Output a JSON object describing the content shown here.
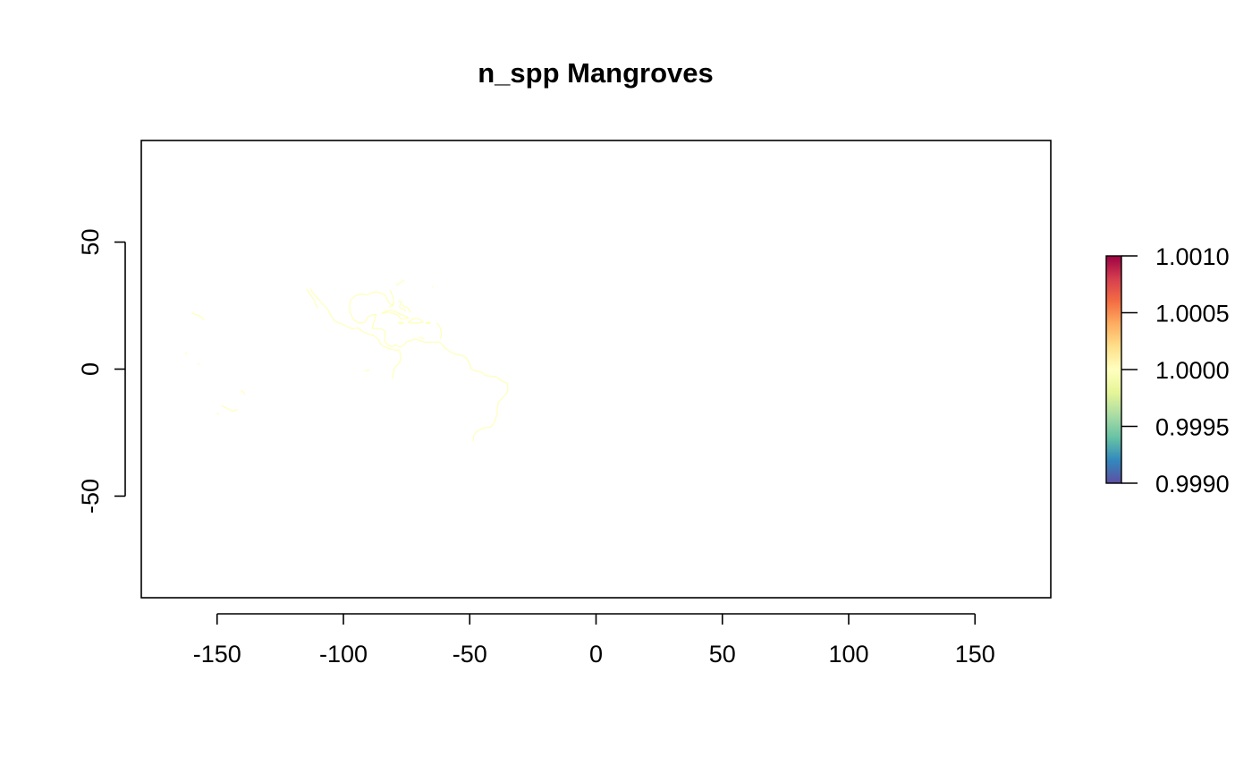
{
  "chart_data": {
    "type": "heatmap",
    "title": "n_spp Mangroves",
    "xlabel": "",
    "ylabel": "",
    "xlim": [
      -180,
      180
    ],
    "ylim": [
      -90,
      90
    ],
    "x_ticks": [
      -150,
      -100,
      -50,
      0,
      50,
      100,
      150
    ],
    "x_tick_labels": [
      "-150",
      "-100",
      "-50",
      "0",
      "50",
      "100",
      "150"
    ],
    "y_ticks": [
      -50,
      0,
      50
    ],
    "y_tick_labels": [
      "-50",
      "0",
      "50"
    ],
    "grid": false,
    "legend": {
      "type": "colorbar",
      "placement": "right",
      "range": [
        0.999,
        1.001
      ],
      "ticks": [
        0.999,
        0.9995,
        1.0,
        1.0005,
        1.001
      ],
      "tick_labels": [
        "0.9990",
        "0.9995",
        "1.0000",
        "1.0005",
        "1.0010"
      ],
      "palette": [
        "#5E4FA2",
        "#3288BD",
        "#66C2A5",
        "#ABDDA4",
        "#E6F598",
        "#FFFFBF",
        "#FEE08B",
        "#FDAE61",
        "#F46D43",
        "#D53E4F",
        "#9E0142"
      ]
    },
    "value_color": "#FFFFBF",
    "cell_value": 1.0,
    "coast_segments": [
      {
        "region": "gulf-of-california-west",
        "points": [
          [
            -114.5,
            31.5
          ],
          [
            -113.5,
            30
          ],
          [
            -112.5,
            28.5
          ],
          [
            -111.5,
            27
          ],
          [
            -111,
            25.5
          ],
          [
            -110.2,
            24
          ]
        ]
      },
      {
        "region": "gulf-of-california-east",
        "points": [
          [
            -113,
            31.5
          ],
          [
            -112,
            30
          ],
          [
            -110.8,
            28.5
          ],
          [
            -109.5,
            27
          ],
          [
            -108.5,
            25.8
          ],
          [
            -107.2,
            24.6
          ],
          [
            -106,
            23.2
          ],
          [
            -105.3,
            21.6
          ]
        ]
      },
      {
        "region": "pacific-mexico-central-america",
        "points": [
          [
            -105.3,
            21.6
          ],
          [
            -103.5,
            19
          ],
          [
            -100,
            17.5
          ],
          [
            -96.5,
            15.8
          ],
          [
            -94,
            16.2
          ],
          [
            -92.5,
            14.8
          ],
          [
            -90,
            13.8
          ],
          [
            -88,
            13.2
          ],
          [
            -86.5,
            12
          ],
          [
            -85.7,
            11
          ],
          [
            -85.5,
            10
          ],
          [
            -84.5,
            9.3
          ],
          [
            -83,
            8.5
          ],
          [
            -81,
            7.8
          ],
          [
            -79.5,
            7.5
          ],
          [
            -78,
            7.5
          ]
        ]
      },
      {
        "region": "gulf-of-mexico",
        "points": [
          [
            -97.5,
            22.5
          ],
          [
            -97.5,
            25
          ],
          [
            -97.2,
            27
          ],
          [
            -95.5,
            28.8
          ],
          [
            -93,
            29.6
          ],
          [
            -90.5,
            29.2
          ],
          [
            -89,
            30
          ],
          [
            -87,
            30.4
          ],
          [
            -85,
            29.8
          ],
          [
            -83.3,
            29
          ],
          [
            -82.7,
            27.5
          ],
          [
            -81.5,
            25.5
          ],
          [
            -80.2,
            25.3
          ],
          [
            -80.1,
            27
          ],
          [
            -80.6,
            29
          ],
          [
            -81.4,
            31
          ]
        ]
      },
      {
        "region": "yucatan-caribbean-coast",
        "points": [
          [
            -97.5,
            22.5
          ],
          [
            -96,
            19.5
          ],
          [
            -94,
            18.2
          ],
          [
            -91.5,
            18.5
          ],
          [
            -90.4,
            20.5
          ],
          [
            -88.5,
            21.4
          ],
          [
            -87,
            21.5
          ],
          [
            -87.5,
            19.8
          ],
          [
            -88.2,
            17.6
          ],
          [
            -88.6,
            16
          ],
          [
            -87,
            15.8
          ],
          [
            -85,
            15.9
          ],
          [
            -83.5,
            15
          ],
          [
            -83.5,
            13
          ],
          [
            -83.7,
            11
          ],
          [
            -82.5,
            9.5
          ],
          [
            -81,
            8.8
          ],
          [
            -79.5,
            9.5
          ],
          [
            -77.5,
            8.7
          ],
          [
            -76,
            9.5
          ],
          [
            -75,
            10.8
          ],
          [
            -73,
            11.3
          ],
          [
            -71.5,
            11.8
          ],
          [
            -70,
            11.4
          ],
          [
            -68,
            10.6
          ],
          [
            -66,
            10.6
          ],
          [
            -63.8,
            10.6
          ],
          [
            -62,
            10.7
          ],
          [
            -61,
            9.8
          ],
          [
            -60,
            8.5
          ],
          [
            -58,
            7
          ],
          [
            -56,
            5.9
          ],
          [
            -54,
            5.7
          ],
          [
            -52,
            4.8
          ],
          [
            -51,
            4
          ]
        ]
      },
      {
        "region": "cuba",
        "points": [
          [
            -84.9,
            21.9
          ],
          [
            -83,
            22.9
          ],
          [
            -81,
            23.1
          ],
          [
            -79,
            22.5
          ],
          [
            -77.5,
            21.6
          ],
          [
            -76,
            21
          ],
          [
            -74.2,
            20.2
          ],
          [
            -75.5,
            19.9
          ],
          [
            -77.5,
            19.9
          ],
          [
            -78.5,
            21.4
          ],
          [
            -80.5,
            21.9
          ],
          [
            -82.5,
            22.4
          ],
          [
            -84.9,
            21.9
          ]
        ]
      },
      {
        "region": "hispaniola",
        "points": [
          [
            -74.4,
            18.4
          ],
          [
            -72.5,
            19.8
          ],
          [
            -70.5,
            19.9
          ],
          [
            -68.4,
            18.6
          ],
          [
            -70,
            18.2
          ],
          [
            -72,
            18.1
          ],
          [
            -74.4,
            18.4
          ]
        ]
      },
      {
        "region": "jamaica",
        "points": [
          [
            -78.3,
            18.3
          ],
          [
            -77,
            18.5
          ],
          [
            -76.2,
            18
          ],
          [
            -77.5,
            17.8
          ],
          [
            -78.3,
            18.3
          ]
        ]
      },
      {
        "region": "puerto-rico",
        "points": [
          [
            -67.2,
            18.4
          ],
          [
            -65.6,
            18.4
          ],
          [
            -65.8,
            18
          ],
          [
            -67.2,
            18
          ]
        ]
      },
      {
        "region": "lesser-antilles",
        "points": [
          [
            -63,
            18
          ],
          [
            -62,
            17
          ],
          [
            -61.5,
            15.5
          ],
          [
            -61.2,
            14
          ],
          [
            -61.3,
            13
          ],
          [
            -61.6,
            12
          ]
        ]
      },
      {
        "region": "bahamas-1",
        "points": [
          [
            -78.2,
            26.7
          ],
          [
            -77,
            26.5
          ],
          [
            -77.6,
            25
          ]
        ]
      },
      {
        "region": "bahamas-2",
        "points": [
          [
            -77.8,
            24.6
          ],
          [
            -77.2,
            23.8
          ],
          [
            -75.8,
            23.5
          ],
          [
            -75.5,
            22.8
          ]
        ]
      },
      {
        "region": "bahamas-3",
        "points": [
          [
            -76.5,
            25.2
          ],
          [
            -76,
            24.5
          ],
          [
            -74.5,
            24.2
          ],
          [
            -73.5,
            22.5
          ]
        ]
      },
      {
        "region": "florida-keys",
        "points": [
          [
            -81.8,
            24.6
          ],
          [
            -80.8,
            24.8
          ],
          [
            -80.3,
            25.2
          ]
        ]
      },
      {
        "region": "bermuda",
        "points": [
          [
            -64.8,
            32.3
          ],
          [
            -64.7,
            32.4
          ]
        ]
      },
      {
        "region": "atlantic-north",
        "points": [
          [
            -79,
            33
          ],
          [
            -77.5,
            34
          ],
          [
            -76,
            35
          ]
        ]
      },
      {
        "region": "aruba-curacao",
        "points": [
          [
            -70,
            12.5
          ],
          [
            -69,
            12.2
          ],
          [
            -68.2,
            12.1
          ]
        ]
      },
      {
        "region": "brazil-north",
        "points": [
          [
            -51,
            4
          ],
          [
            -50,
            2
          ],
          [
            -49.7,
            0.5
          ],
          [
            -48.5,
            -0.5
          ],
          [
            -47,
            -0.8
          ],
          [
            -45,
            -1.3
          ],
          [
            -44,
            -2.5
          ],
          [
            -42,
            -2.8
          ],
          [
            -40,
            -2.9
          ],
          [
            -38.5,
            -3.7
          ],
          [
            -37,
            -4.9
          ],
          [
            -35.2,
            -5.5
          ]
        ]
      },
      {
        "region": "brazil-east",
        "points": [
          [
            -35.2,
            -5.5
          ],
          [
            -34.9,
            -7
          ],
          [
            -35,
            -9
          ],
          [
            -36,
            -10.3
          ],
          [
            -37.3,
            -11.7
          ],
          [
            -38.7,
            -13
          ],
          [
            -39,
            -15
          ],
          [
            -39.2,
            -17.5
          ],
          [
            -39.7,
            -19.5
          ],
          [
            -40.5,
            -21.5
          ],
          [
            -42,
            -22.9
          ],
          [
            -44,
            -23.1
          ],
          [
            -46,
            -23.9
          ],
          [
            -47.5,
            -24.8
          ],
          [
            -48.5,
            -26.5
          ],
          [
            -48.6,
            -28.3
          ]
        ]
      },
      {
        "region": "pacific-colombia-ecuador",
        "points": [
          [
            -77.7,
            7.2
          ],
          [
            -77.5,
            5.5
          ],
          [
            -77.3,
            4
          ],
          [
            -77.8,
            2.5
          ],
          [
            -78.8,
            1.5
          ],
          [
            -80,
            0
          ],
          [
            -80.3,
            -2
          ],
          [
            -80.5,
            -3.5
          ]
        ]
      },
      {
        "region": "galapagos",
        "points": [
          [
            -91.5,
            -0.5
          ],
          [
            -90.5,
            -0.8
          ],
          [
            -90,
            -0.3
          ]
        ]
      },
      {
        "region": "hawaii",
        "points": [
          [
            -160,
            22
          ],
          [
            -158,
            21.3
          ],
          [
            -156.5,
            20.8
          ],
          [
            -155.3,
            19.5
          ]
        ]
      },
      {
        "region": "kiribati",
        "points": [
          [
            -162.5,
            6.5
          ],
          [
            -162,
            5.8
          ]
        ]
      },
      {
        "region": "line-islands",
        "points": [
          [
            -157.5,
            2
          ],
          [
            -157.2,
            1.8
          ]
        ]
      },
      {
        "region": "marquesas",
        "points": [
          [
            -140.5,
            -8.5
          ],
          [
            -139.8,
            -9
          ],
          [
            -139,
            -9.8
          ]
        ]
      },
      {
        "region": "tuamotu",
        "points": [
          [
            -148,
            -14.5
          ],
          [
            -146,
            -15.5
          ],
          [
            -144,
            -16.5
          ],
          [
            -142,
            -16
          ]
        ]
      },
      {
        "region": "society-islands",
        "points": [
          [
            -150,
            -17.3
          ],
          [
            -149.5,
            -17.8
          ]
        ]
      }
    ]
  }
}
